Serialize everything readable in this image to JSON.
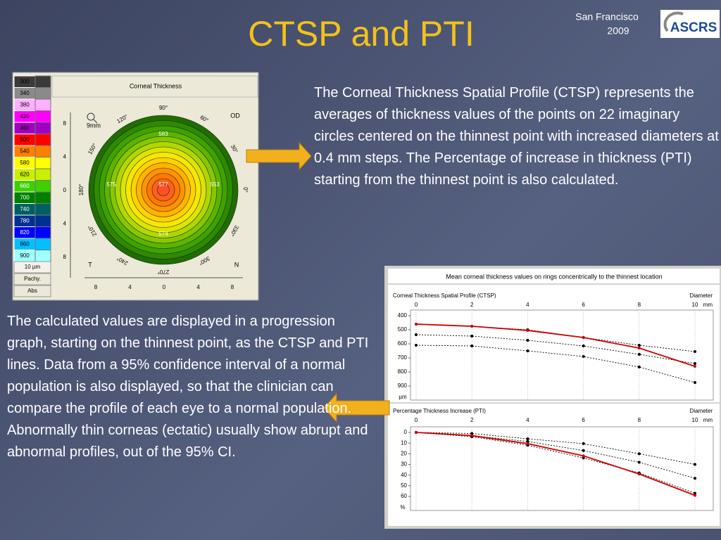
{
  "header": {
    "title": "CTSP and PTI",
    "venue": "San Francisco",
    "year": "2009",
    "logo": "ASCRS"
  },
  "right_text": "The Corneal Thickness Spatial Profile (CTSP) represents the averages of thickness values of the points on 22 imaginary circles centered on the thinnest point with increased diameters at 0.4 mm steps. The Percentage of increase in thickness (PTI) starting from the thinnest point is also calculated.",
  "left_text": [
    "The calculated values are displayed in a progression graph, starting on the thinnest point, as the CTSP and PTI lines. Data from a 95% confidence interval of a normal population is also displayed, so that the clinician can compare the profile of each eye to a normal population.",
    "Abnormally thin corneas (ectatic) usually show abrupt and abnormal profiles, out of the 95% CI."
  ],
  "map": {
    "title": "Corneal Thickness",
    "scale": [
      {
        "value": 300,
        "color": "#3a3a3a"
      },
      {
        "value": 340,
        "color": "#8a8a8a"
      },
      {
        "value": 380,
        "color": "#ffb0ff"
      },
      {
        "value": 420,
        "color": "#ff00ff"
      },
      {
        "value": 460,
        "color": "#a000c0"
      },
      {
        "value": 500,
        "color": "#ff0000"
      },
      {
        "value": 540,
        "color": "#ff8000"
      },
      {
        "value": 580,
        "color": "#ffff00"
      },
      {
        "value": 620,
        "color": "#c8f000"
      },
      {
        "value": 660,
        "color": "#40d000"
      },
      {
        "value": 700,
        "color": "#008000"
      },
      {
        "value": 740,
        "color": "#006060"
      },
      {
        "value": 780,
        "color": "#003090"
      },
      {
        "value": 820,
        "color": "#0000ff"
      },
      {
        "value": 860,
        "color": "#00c0ff"
      },
      {
        "value": 900,
        "color": "#a0ffff"
      }
    ],
    "unit": "10 µm",
    "buttons": [
      "Pachy.",
      "Abs"
    ],
    "size": "9mm",
    "eye": "OD",
    "temporal": "T",
    "nasal": "N",
    "angles": [
      {
        "value": 90,
        "label": "90°"
      },
      {
        "value": 60,
        "label": "60°"
      },
      {
        "value": 30,
        "label": "30°"
      },
      {
        "value": 0,
        "label": "0°"
      },
      {
        "value": 330,
        "label": "330°"
      },
      {
        "value": 300,
        "label": "300°"
      },
      {
        "value": 270,
        "label": "270°"
      },
      {
        "value": 240,
        "label": "240°"
      },
      {
        "value": 210,
        "label": "210°"
      },
      {
        "value": 180,
        "label": "180°"
      },
      {
        "value": 150,
        "label": "150°"
      },
      {
        "value": 120,
        "label": "120°"
      }
    ],
    "yticks": [
      "8",
      "4",
      "0",
      "4",
      "8"
    ],
    "xticks": [
      "8",
      "4",
      "0",
      "4",
      "8"
    ],
    "points": [
      "575",
      "577",
      "553",
      "583",
      "574"
    ]
  },
  "graph": {
    "title": "Mean corneal thickness values on rings concentrically to the thinnest location",
    "x_label": "Diameter",
    "x_unit": "mm",
    "xlim": [
      0,
      10
    ],
    "xticks": [
      0,
      2,
      4,
      6,
      8,
      10
    ],
    "x": [
      0,
      2,
      4,
      6,
      8,
      10
    ],
    "ctsp": {
      "title": "Corneal Thickness Spatial Profile (CTSP)",
      "y_unit": "µm",
      "ylim": [
        400,
        900
      ],
      "yticks": [
        400,
        500,
        600,
        700,
        800,
        900
      ],
      "series": [
        {
          "color": "#000000",
          "dashed": true,
          "values": [
            460,
            475,
            500,
            555,
            610,
            655
          ]
        },
        {
          "color": "#000000",
          "dashed": true,
          "values": [
            535,
            545,
            575,
            615,
            675,
            740
          ]
        },
        {
          "color": "#000000",
          "dashed": true,
          "values": [
            610,
            615,
            650,
            690,
            765,
            875
          ]
        },
        {
          "color": "#cc0000",
          "dashed": false,
          "values": [
            460,
            475,
            505,
            555,
            630,
            760
          ]
        }
      ]
    },
    "pti": {
      "title": "Percentage Thickness Increase (PTI)",
      "y_unit": "%",
      "ylim": [
        0,
        60
      ],
      "yticks": [
        0,
        10,
        20,
        30,
        40,
        50,
        60
      ],
      "series": [
        {
          "color": "#000000",
          "dashed": true,
          "values": [
            0,
            1,
            6,
            10.5,
            20,
            30
          ]
        },
        {
          "color": "#000000",
          "dashed": true,
          "values": [
            0,
            3,
            8.5,
            17,
            28,
            43
          ]
        },
        {
          "color": "#000000",
          "dashed": true,
          "values": [
            0,
            4,
            12,
            24,
            38,
            57
          ]
        },
        {
          "color": "#cc0000",
          "dashed": false,
          "values": [
            0,
            3,
            10.5,
            22,
            39,
            59
          ]
        }
      ]
    }
  }
}
